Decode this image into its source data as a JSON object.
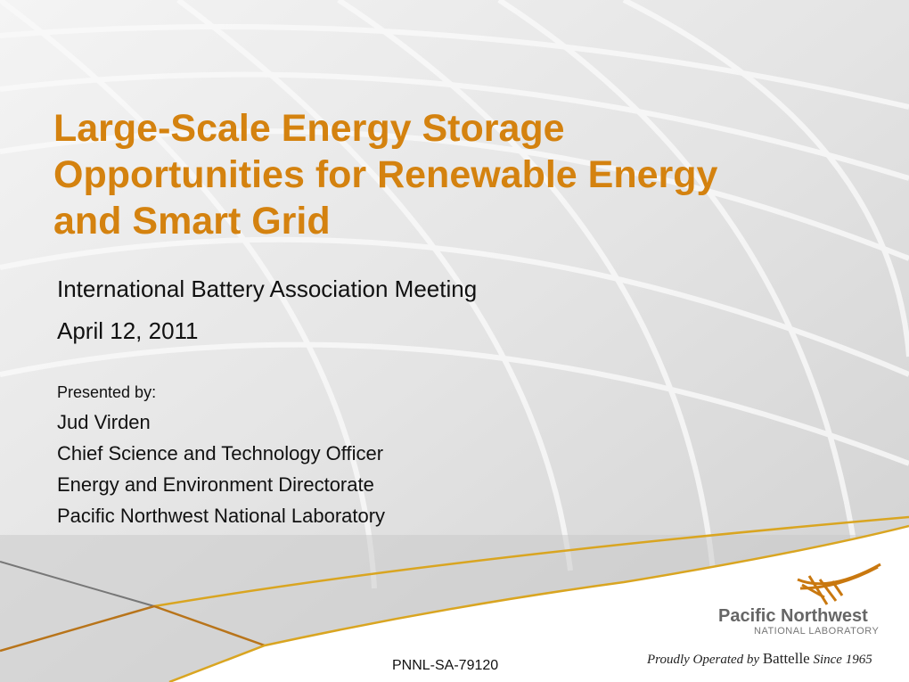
{
  "slide": {
    "title_lines": [
      "Large-Scale Energy Storage",
      "Opportunities for Renewable Energy",
      "and Smart Grid"
    ],
    "event": "International Battery Association Meeting",
    "date": "April 12, 2011",
    "presented_by": "Presented by:",
    "presenter": [
      "Jud Virden",
      "Chief Science and Technology Officer",
      "Energy and Environment Directorate",
      "Pacific Northwest National Laboratory"
    ],
    "document_number": "PNNL-SA-79120"
  },
  "logo": {
    "name": "Pacific Northwest",
    "subname": "NATIONAL LABORATORY",
    "tagline_prefix": "Proudly Operated by",
    "tagline_brand": "Battelle",
    "tagline_suffix": "Since 1965"
  },
  "colors": {
    "accent": "#d4820f",
    "gold_line": "#d9a521",
    "background": "#e9e9e9"
  }
}
